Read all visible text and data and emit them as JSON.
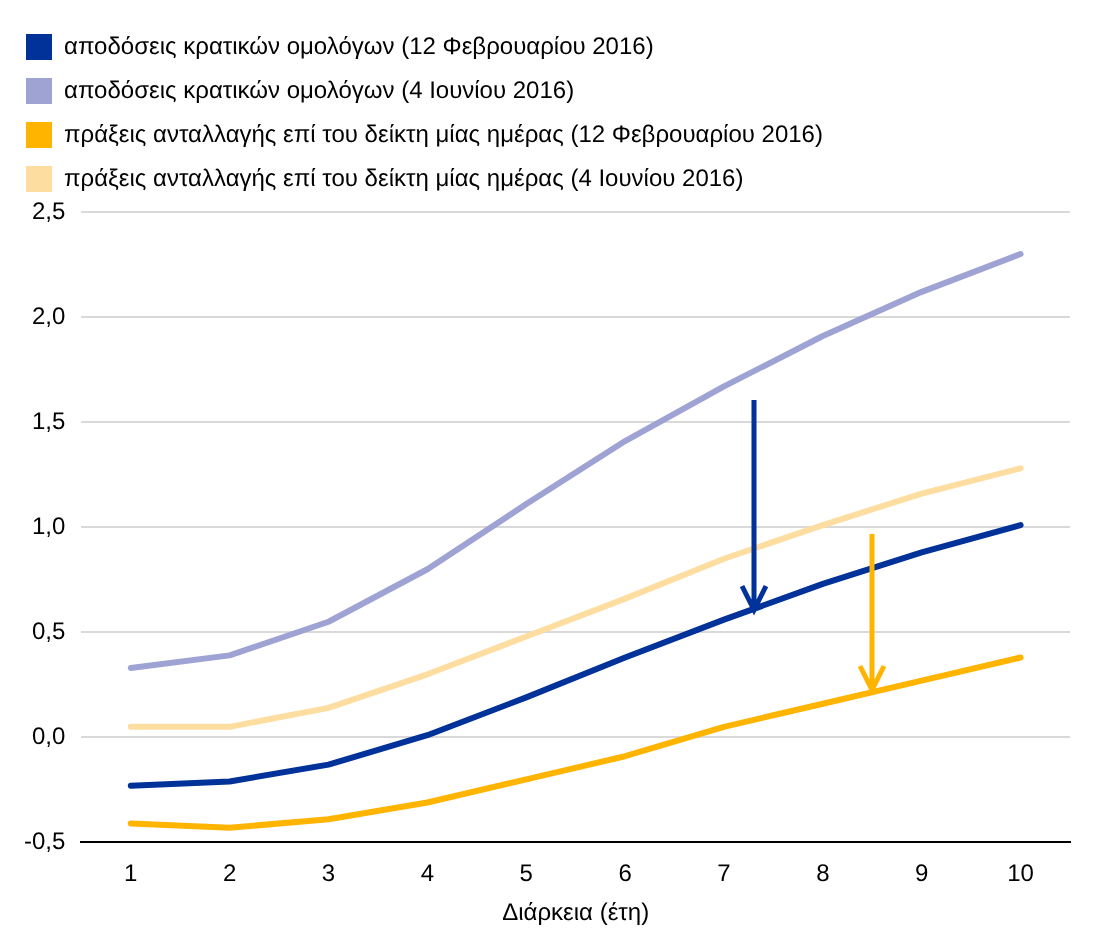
{
  "chart_data": {
    "type": "line",
    "xlabel": "Διάρκεια (έτη)",
    "categories": [
      "1",
      "2",
      "3",
      "4",
      "5",
      "6",
      "7",
      "8",
      "9",
      "10"
    ],
    "series": [
      {
        "name": "αποδόσεις κρατικών ομολόγων (12 Φεβρουαρίου 2016)",
        "color": "#003299",
        "values": [
          -0.23,
          -0.21,
          -0.13,
          0.01,
          0.19,
          0.38,
          0.56,
          0.73,
          0.88,
          1.01
        ]
      },
      {
        "name": "αποδόσεις κρατικών ομολόγων (4 Ιουνίου 2016)",
        "color": "#9fa3d4",
        "values": [
          0.33,
          0.39,
          0.55,
          0.8,
          1.11,
          1.41,
          1.67,
          1.91,
          2.12,
          2.3
        ]
      },
      {
        "name": "πράξεις ανταλλαγής επί του δείκτη μίας ημέρας (12 Φεβρουαρίου 2016)",
        "color": "#ffb400",
        "values": [
          -0.41,
          -0.43,
          -0.39,
          -0.31,
          -0.2,
          -0.09,
          0.05,
          0.16,
          0.27,
          0.38
        ]
      },
      {
        "name": "πράξεις ανταλλαγής επί του δείκτη μίας ημέρας (4 Ιουνίου 2016)",
        "color": "#fddda0",
        "values": [
          0.05,
          0.05,
          0.14,
          0.3,
          0.48,
          0.66,
          0.85,
          1.01,
          1.16,
          1.28
        ]
      }
    ],
    "ylim": [
      -0.5,
      2.5
    ],
    "yticks": [
      {
        "value": -0.5,
        "label": "-0,5"
      },
      {
        "value": 0,
        "label": "0,0"
      },
      {
        "value": 0.5,
        "label": "0,5"
      },
      {
        "value": 1,
        "label": "1,0"
      },
      {
        "value": 1.5,
        "label": "1,5"
      },
      {
        "value": 2,
        "label": "2,0"
      },
      {
        "value": 2.5,
        "label": "2,5"
      }
    ],
    "grid": "y",
    "legend": "top",
    "marker": "none",
    "line_style": "solid"
  }
}
